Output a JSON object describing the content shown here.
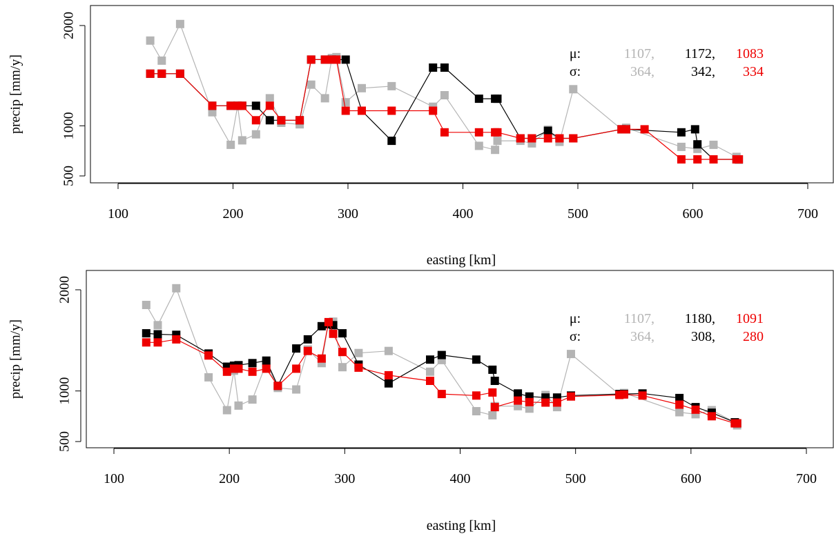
{
  "colors": {
    "gray": "#b4b4b4",
    "black": "#000000",
    "red": "#ee0000"
  },
  "chart_data": [
    {
      "type": "line",
      "xlabel": "easting  [km]",
      "ylabel": "precip  [mm/y]",
      "xlim": [
        100,
        700
      ],
      "xticks": [
        100,
        200,
        300,
        400,
        500,
        600,
        700
      ],
      "ylim": [
        500,
        2000
      ],
      "yticks": [
        500,
        1000,
        2000
      ],
      "yscale": "linear",
      "stats": {
        "mu_label": "μ:",
        "sigma_label": "σ:",
        "mu": [
          "1107,",
          "1172,",
          "1083"
        ],
        "sigma": [
          "364,",
          "342,",
          "334"
        ]
      },
      "series": [
        {
          "color": "gray",
          "x": [
            128,
            138,
            154,
            182,
            198,
            204,
            208,
            220,
            232,
            242,
            258,
            268,
            280,
            286,
            290,
            298,
            312,
            338,
            374,
            384,
            414,
            428,
            430,
            450,
            460,
            474,
            484,
            496,
            538,
            542,
            590,
            604,
            618,
            638,
            640
          ],
          "y": [
            1850,
            1650,
            2015,
            1135,
            810,
            1200,
            855,
            915,
            1275,
            1030,
            1015,
            1410,
            1275,
            1675,
            1685,
            1235,
            1375,
            1395,
            1190,
            1305,
            800,
            760,
            850,
            850,
            825,
            960,
            840,
            1365,
            965,
            980,
            790,
            770,
            810,
            690,
            660
          ]
        },
        {
          "color": "black",
          "x": [
            128,
            138,
            154,
            182,
            198,
            204,
            208,
            220,
            232,
            242,
            258,
            268,
            280,
            286,
            290,
            298,
            312,
            338,
            374,
            384,
            414,
            428,
            430,
            450,
            460,
            474,
            484,
            496,
            538,
            542,
            590,
            602,
            604,
            618,
            638,
            640
          ],
          "y": [
            1520,
            1520,
            1520,
            1200,
            1200,
            1200,
            1200,
            1200,
            1055,
            1055,
            1055,
            1660,
            1660,
            1660,
            1660,
            1660,
            1150,
            850,
            1580,
            1580,
            1270,
            1270,
            1270,
            875,
            875,
            950,
            875,
            875,
            965,
            965,
            935,
            965,
            815,
            665,
            665,
            665
          ]
        },
        {
          "color": "red",
          "x": [
            128,
            138,
            154,
            182,
            198,
            204,
            208,
            220,
            232,
            242,
            258,
            268,
            280,
            286,
            290,
            298,
            312,
            338,
            374,
            384,
            414,
            428,
            430,
            450,
            460,
            474,
            484,
            496,
            538,
            542,
            558,
            590,
            604,
            618,
            638,
            640
          ],
          "y": [
            1520,
            1520,
            1520,
            1200,
            1200,
            1200,
            1200,
            1055,
            1200,
            1055,
            1055,
            1660,
            1660,
            1660,
            1660,
            1150,
            1150,
            1150,
            1150,
            935,
            935,
            935,
            935,
            875,
            875,
            875,
            875,
            875,
            965,
            965,
            965,
            665,
            665,
            665,
            665,
            665
          ]
        }
      ]
    },
    {
      "type": "line",
      "xlabel": "easting  [km]",
      "ylabel": "precip  [mm/y]",
      "xlim": [
        100,
        700
      ],
      "xticks": [
        100,
        200,
        300,
        400,
        500,
        600,
        700
      ],
      "ylim": [
        500,
        2000
      ],
      "yticks": [
        500,
        1000,
        2000
      ],
      "yscale": "linear",
      "stats": {
        "mu_label": "μ:",
        "sigma_label": "σ:",
        "mu": [
          "1107,",
          "1180,",
          "1091"
        ],
        "sigma": [
          "364,",
          "308,",
          "280"
        ]
      },
      "series": [
        {
          "color": "gray",
          "x": [
            128,
            138,
            154,
            182,
            198,
            204,
            208,
            220,
            232,
            242,
            258,
            268,
            280,
            286,
            290,
            298,
            312,
            338,
            374,
            384,
            414,
            428,
            430,
            450,
            460,
            474,
            484,
            496,
            538,
            542,
            590,
            604,
            618,
            638,
            640
          ],
          "y": [
            1850,
            1650,
            2015,
            1135,
            810,
            1200,
            855,
            915,
            1275,
            1030,
            1015,
            1410,
            1275,
            1675,
            1685,
            1235,
            1375,
            1395,
            1190,
            1305,
            800,
            760,
            850,
            850,
            825,
            960,
            840,
            1365,
            965,
            980,
            790,
            770,
            810,
            690,
            660
          ]
        },
        {
          "color": "black",
          "x": [
            128,
            138,
            154,
            182,
            198,
            204,
            208,
            220,
            232,
            242,
            258,
            268,
            280,
            286,
            290,
            298,
            312,
            338,
            374,
            384,
            414,
            428,
            430,
            450,
            460,
            474,
            484,
            496,
            538,
            542,
            558,
            590,
            604,
            618,
            638,
            640
          ],
          "y": [
            1570,
            1560,
            1555,
            1370,
            1240,
            1250,
            1255,
            1275,
            1300,
            1050,
            1420,
            1510,
            1640,
            1660,
            1650,
            1570,
            1260,
            1075,
            1310,
            1355,
            1310,
            1210,
            1100,
            975,
            945,
            935,
            935,
            955,
            970,
            970,
            975,
            930,
            840,
            785,
            690,
            680
          ]
        },
        {
          "color": "red",
          "x": [
            128,
            138,
            154,
            182,
            198,
            204,
            208,
            220,
            232,
            242,
            258,
            268,
            280,
            286,
            290,
            298,
            312,
            338,
            374,
            384,
            414,
            428,
            430,
            450,
            460,
            474,
            484,
            496,
            538,
            542,
            558,
            590,
            604,
            618,
            638,
            640
          ],
          "y": [
            1480,
            1480,
            1510,
            1350,
            1190,
            1220,
            1220,
            1190,
            1220,
            1050,
            1220,
            1395,
            1320,
            1680,
            1565,
            1385,
            1230,
            1155,
            1100,
            970,
            955,
            985,
            840,
            905,
            890,
            885,
            885,
            945,
            960,
            965,
            955,
            865,
            815,
            750,
            680,
            680
          ]
        }
      ]
    }
  ]
}
